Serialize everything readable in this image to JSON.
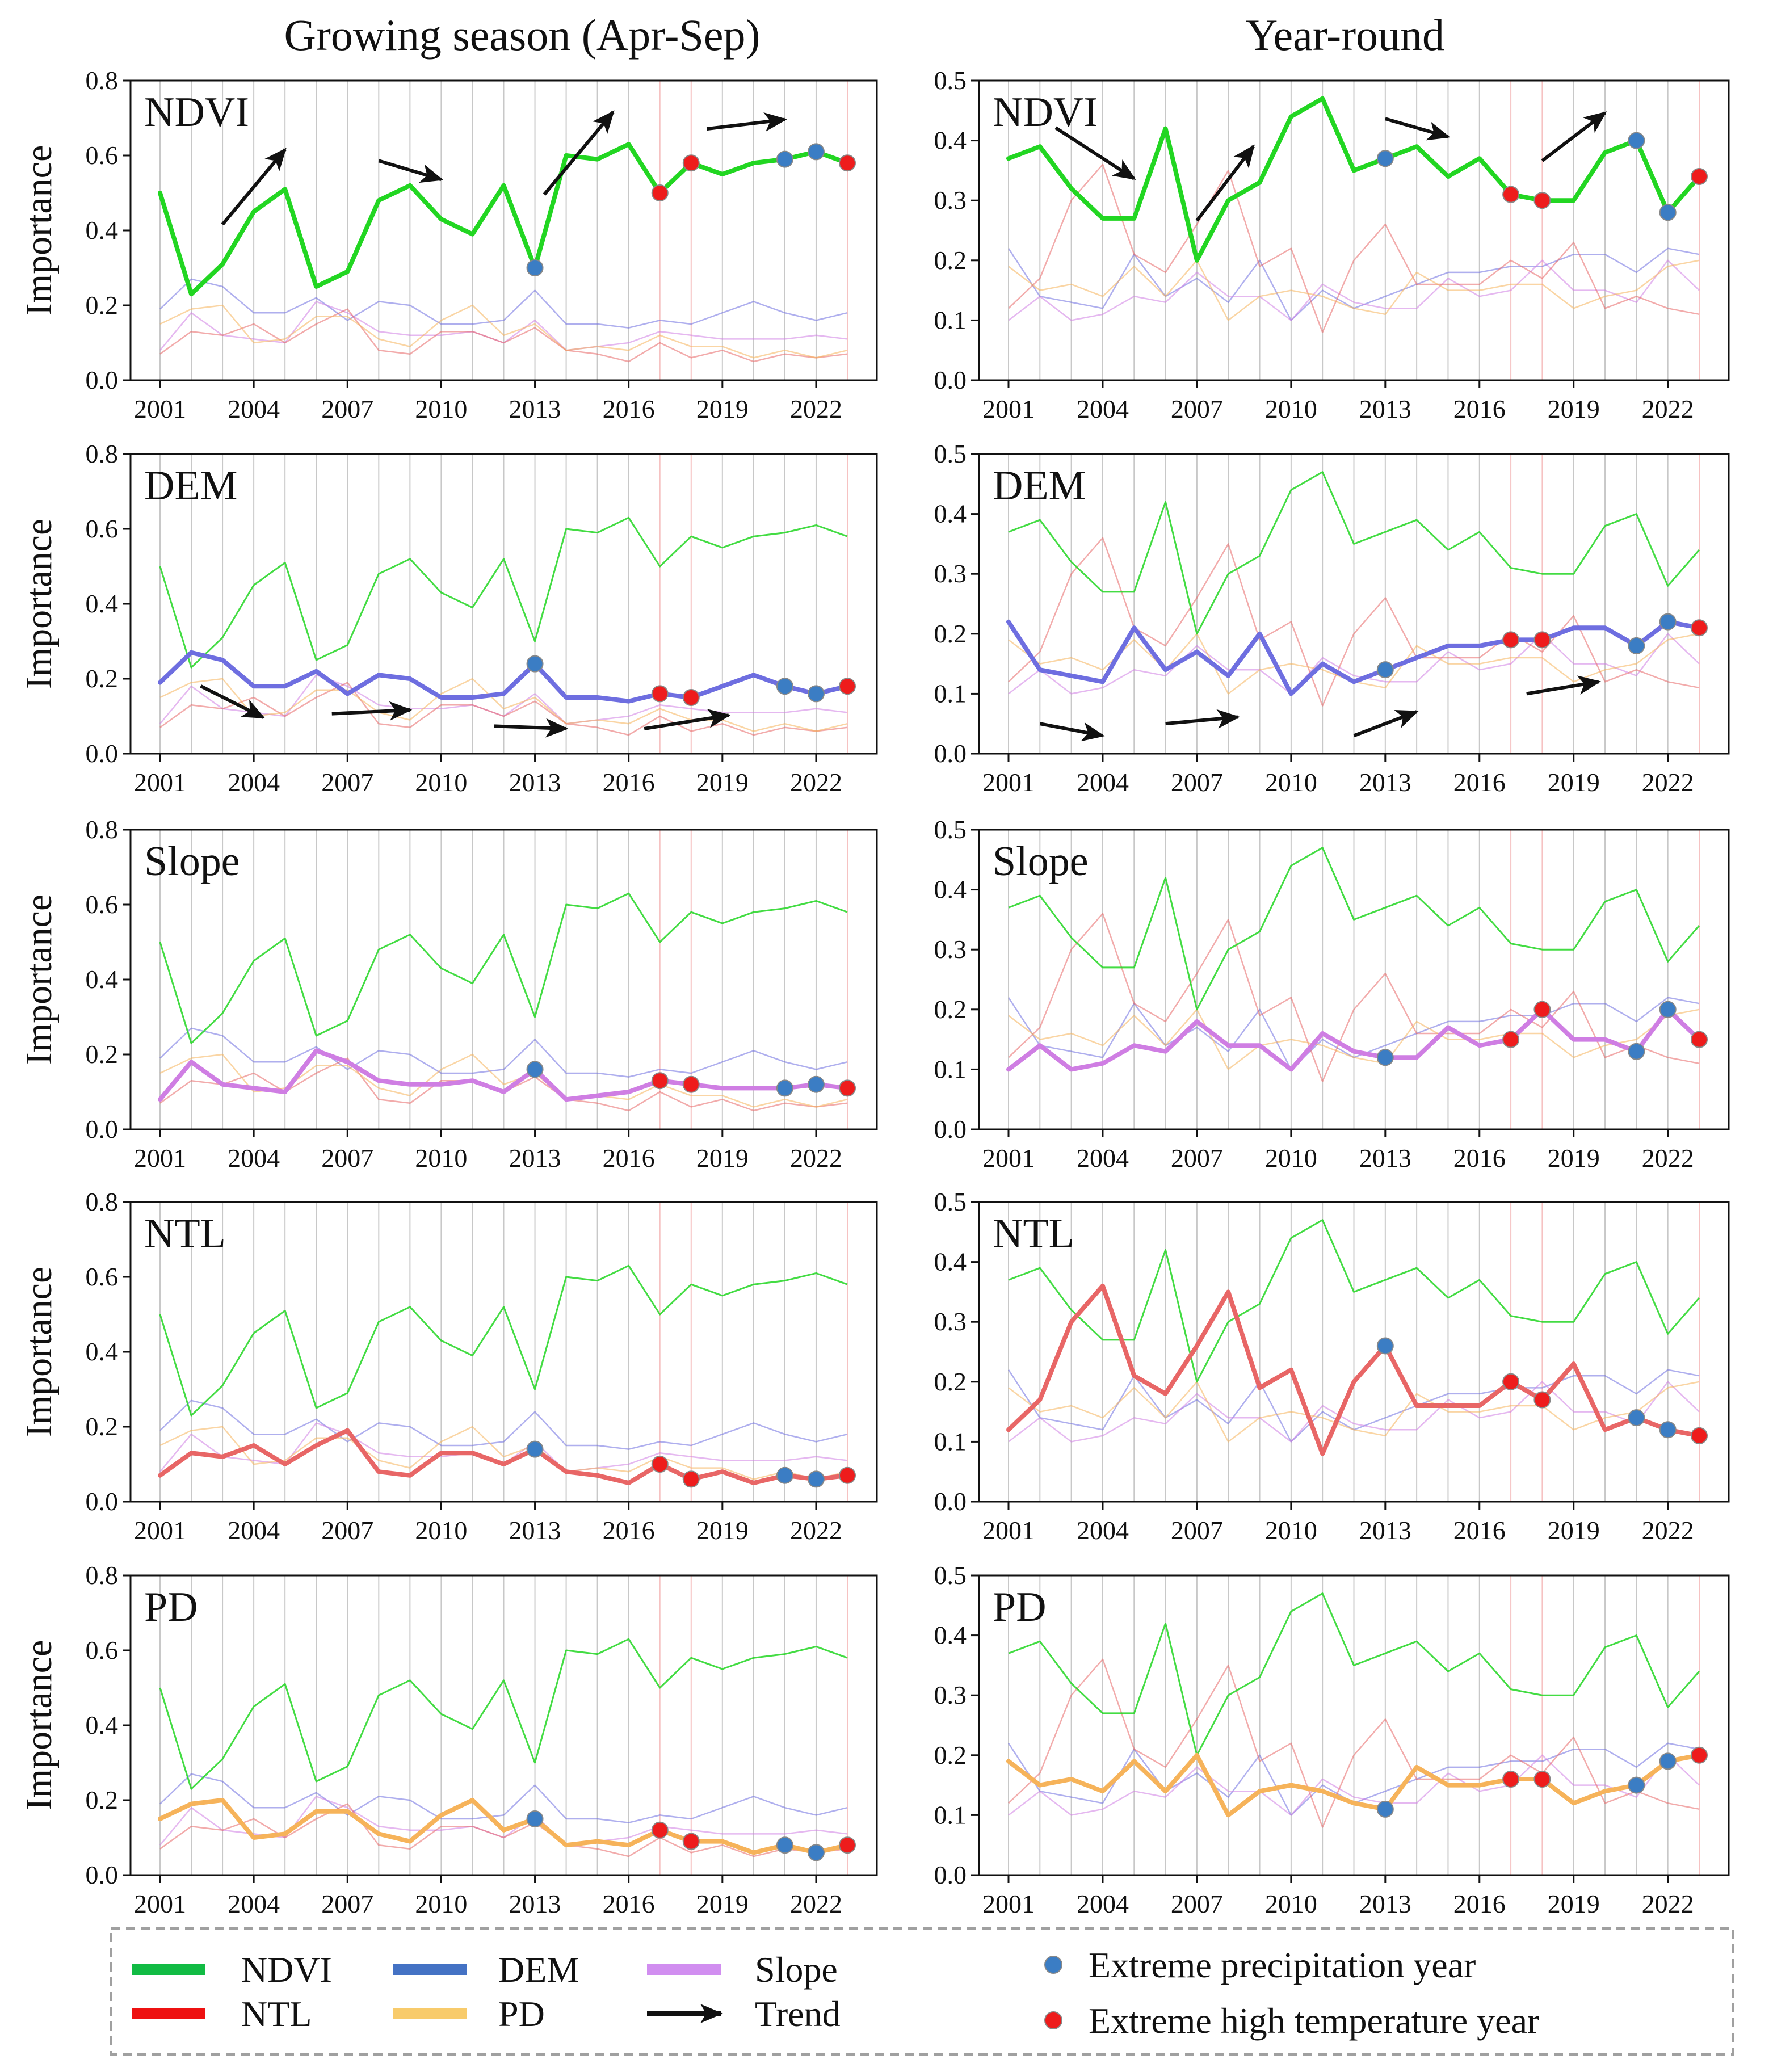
{
  "columns": [
    {
      "title": "Growing season (Apr-Sep)"
    },
    {
      "title": "Year-round"
    }
  ],
  "y_label": "Importance",
  "colors": {
    "NDVI": "#22d622",
    "DEM": "#6e6ee0",
    "Slope": "#cf7ee3",
    "NTL": "#e86666",
    "PD": "#f6b35a",
    "precip_marker": "#3b7dc4",
    "temp_marker": "#ee1c1c",
    "arrow": "#111111",
    "vline_gray": "#bbbbbb",
    "vline_red": "#f4b4b4",
    "legend_border": "#a0a0a0"
  },
  "legend": {
    "items": [
      {
        "label": "NDVI",
        "color": "#11bb44",
        "kind": "line"
      },
      {
        "label": "DEM",
        "color": "#4472c4",
        "kind": "line"
      },
      {
        "label": "Slope",
        "color": "#d18ef0",
        "kind": "line"
      },
      {
        "label": "NTL",
        "color": "#ee1111",
        "kind": "line"
      },
      {
        "label": "PD",
        "color": "#f8cb6b",
        "kind": "line"
      },
      {
        "label": "Trend",
        "color": "#111111",
        "kind": "arrow"
      },
      {
        "label": "Extreme precipitation year",
        "color": "#3b7dc4",
        "kind": "dot"
      },
      {
        "label": "Extreme high temperature year",
        "color": "#ee1c1c",
        "kind": "dot"
      }
    ]
  },
  "chart_data": {
    "type": "line",
    "x": [
      2001,
      2002,
      2003,
      2004,
      2005,
      2006,
      2007,
      2008,
      2009,
      2010,
      2011,
      2012,
      2013,
      2014,
      2015,
      2016,
      2017,
      2018,
      2019,
      2020,
      2021,
      2022,
      2023
    ],
    "x_ticks": [
      2001,
      2004,
      2007,
      2010,
      2013,
      2016,
      2019,
      2022
    ],
    "extreme_precipitation_years": {
      "growing": [
        2013,
        2021,
        2022
      ],
      "yearround": [
        2013,
        2021,
        2022
      ]
    },
    "extreme_temperature_years": {
      "growing": [
        2017,
        2018,
        2023
      ],
      "yearround": [
        2017,
        2018,
        2023
      ]
    },
    "variables": [
      "NDVI",
      "DEM",
      "Slope",
      "NTL",
      "PD"
    ],
    "series": {
      "growing": {
        "ylim": [
          0,
          0.8
        ],
        "y_ticks": [
          "0.0",
          "0.2",
          "0.4",
          "0.6",
          "0.8"
        ],
        "NDVI": [
          0.5,
          0.23,
          0.31,
          0.45,
          0.51,
          0.25,
          0.29,
          0.48,
          0.52,
          0.43,
          0.39,
          0.52,
          0.3,
          0.6,
          0.59,
          0.63,
          0.5,
          0.58,
          0.55,
          0.58,
          0.59,
          0.61,
          0.58
        ],
        "DEM": [
          0.19,
          0.27,
          0.25,
          0.18,
          0.18,
          0.22,
          0.16,
          0.21,
          0.2,
          0.15,
          0.15,
          0.16,
          0.24,
          0.15,
          0.15,
          0.14,
          0.16,
          0.15,
          0.18,
          0.21,
          0.18,
          0.16,
          0.18
        ],
        "Slope": [
          0.08,
          0.18,
          0.12,
          0.11,
          0.1,
          0.21,
          0.18,
          0.13,
          0.12,
          0.12,
          0.13,
          0.1,
          0.16,
          0.08,
          0.09,
          0.1,
          0.13,
          0.12,
          0.11,
          0.11,
          0.11,
          0.12,
          0.11
        ],
        "NTL": [
          0.07,
          0.13,
          0.12,
          0.15,
          0.1,
          0.15,
          0.19,
          0.08,
          0.07,
          0.13,
          0.13,
          0.1,
          0.14,
          0.08,
          0.07,
          0.05,
          0.1,
          0.06,
          0.08,
          0.05,
          0.07,
          0.06,
          0.07
        ],
        "PD": [
          0.15,
          0.19,
          0.2,
          0.1,
          0.11,
          0.17,
          0.17,
          0.11,
          0.09,
          0.16,
          0.2,
          0.12,
          0.15,
          0.08,
          0.09,
          0.08,
          0.12,
          0.09,
          0.09,
          0.06,
          0.08,
          0.06,
          0.08
        ]
      },
      "yearround": {
        "ylim": [
          0,
          0.5
        ],
        "y_ticks": [
          "0.0",
          "0.1",
          "0.2",
          "0.3",
          "0.4",
          "0.5"
        ],
        "NDVI": [
          0.37,
          0.39,
          0.32,
          0.27,
          0.27,
          0.42,
          0.2,
          0.3,
          0.33,
          0.44,
          0.47,
          0.35,
          0.37,
          0.39,
          0.34,
          0.37,
          0.31,
          0.3,
          0.3,
          0.38,
          0.4,
          0.28,
          0.34
        ],
        "DEM": [
          0.22,
          0.14,
          0.13,
          0.12,
          0.21,
          0.14,
          0.17,
          0.13,
          0.2,
          0.1,
          0.15,
          0.12,
          0.14,
          0.16,
          0.18,
          0.18,
          0.19,
          0.19,
          0.21,
          0.21,
          0.18,
          0.22,
          0.21
        ],
        "Slope": [
          0.1,
          0.14,
          0.1,
          0.11,
          0.14,
          0.13,
          0.18,
          0.14,
          0.14,
          0.1,
          0.16,
          0.13,
          0.12,
          0.12,
          0.17,
          0.14,
          0.15,
          0.2,
          0.15,
          0.15,
          0.13,
          0.2,
          0.15
        ],
        "NTL": [
          0.12,
          0.17,
          0.3,
          0.36,
          0.21,
          0.18,
          0.26,
          0.35,
          0.19,
          0.22,
          0.08,
          0.2,
          0.26,
          0.16,
          0.16,
          0.16,
          0.2,
          0.17,
          0.23,
          0.12,
          0.14,
          0.12,
          0.11
        ],
        "PD": [
          0.19,
          0.15,
          0.16,
          0.14,
          0.19,
          0.14,
          0.2,
          0.1,
          0.14,
          0.15,
          0.14,
          0.12,
          0.11,
          0.18,
          0.15,
          0.15,
          0.16,
          0.16,
          0.12,
          0.14,
          0.15,
          0.19,
          0.2
        ]
      }
    },
    "trend_arrows": {
      "growing": {
        "NDVI": [
          [
            2003,
            2005
          ],
          [
            2008,
            2010
          ],
          [
            2013.3,
            2015.5
          ],
          [
            2018.5,
            2021
          ]
        ],
        "DEM": [
          [
            2002.3,
            2004.3
          ],
          [
            2006.5,
            2009
          ],
          [
            2011.7,
            2014
          ],
          [
            2016.5,
            2019.2
          ]
        ]
      },
      "yearround": {
        "NDVI": [
          [
            2002.5,
            2005
          ],
          [
            2007,
            2008.8
          ],
          [
            2013,
            2015
          ],
          [
            2018,
            2020
          ]
        ],
        "DEM": [
          [
            2002,
            2004
          ],
          [
            2006,
            2008.3
          ],
          [
            2012,
            2014
          ],
          [
            2017.5,
            2019.8
          ]
        ]
      }
    }
  }
}
